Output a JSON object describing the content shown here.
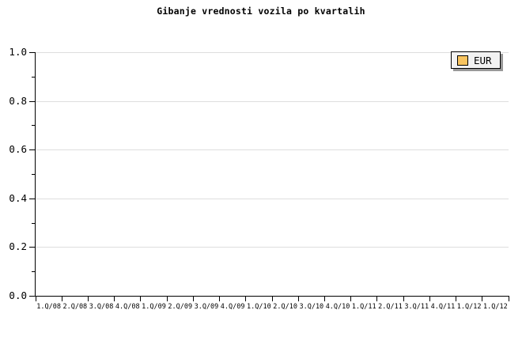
{
  "colors": {
    "background": "#ffffff",
    "title_color": "#000000",
    "axis": "#000000",
    "grid": "#dedede",
    "legend_bg": "#f2f2f2",
    "legend_border": "#000000",
    "legend_shadow": "#999999"
  },
  "chart_data": {
    "type": "line",
    "title": "Gibanje vrednosti vozila po kvartalih",
    "xlabel": "",
    "ylabel": "",
    "categories": [
      "1.Q/08",
      "2.Q/08",
      "3.Q/08",
      "4.Q/08",
      "1.Q/09",
      "2.Q/09",
      "3.Q/09",
      "4.Q/09",
      "1.Q/10",
      "2.Q/10",
      "3.Q/10",
      "4.Q/10",
      "1.Q/11",
      "2.Q/11",
      "3.Q/11",
      "4.Q/11",
      "1.Q/12",
      "1.Q/12"
    ],
    "series": [
      {
        "name": "EUR",
        "color": "#f8c460",
        "values": []
      }
    ],
    "ylim": [
      0,
      1
    ],
    "y_ticks": [
      0,
      0.2,
      0.4,
      0.6,
      0.8,
      1
    ],
    "y_tick_labels": [
      "0.0",
      "0.2",
      "0.4",
      "0.6",
      "0.8",
      "1.0"
    ],
    "y_minor_step": 0.1,
    "grid": "horizontal-major",
    "legend_position": "top-right"
  }
}
